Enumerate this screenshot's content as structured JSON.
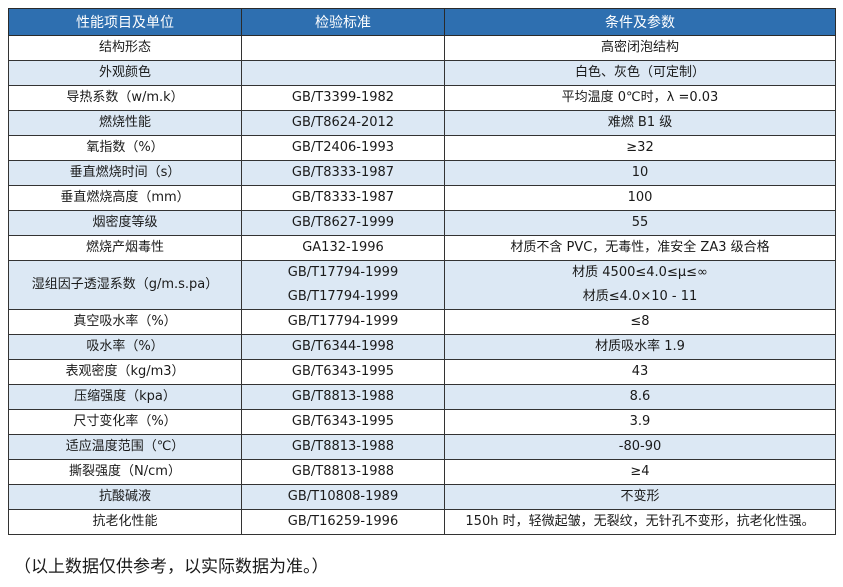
{
  "headers": [
    "性能项目及单位",
    "检验标准",
    "条件及参数"
  ],
  "rows": [
    {
      "item": "结构形态",
      "standard": "",
      "value": "高密闭泡结构"
    },
    {
      "item": "外观颜色",
      "standard": "",
      "value": "白色、灰色（可定制）"
    },
    {
      "item": "导热系数（w/m.k）",
      "standard": "GB/T3399-1982",
      "value": "平均温度 0℃时，λ =0.03"
    },
    {
      "item": "燃烧性能",
      "standard": "GB/T8624-2012",
      "value": "难燃 B1 级"
    },
    {
      "item": "氧指数（%）",
      "standard": "GB/T2406-1993",
      "value": "≥32"
    },
    {
      "item": "垂直燃烧时间（s）",
      "standard": "GB/T8333-1987",
      "value": "10"
    },
    {
      "item": "垂直燃烧高度（mm）",
      "standard": "GB/T8333-1987",
      "value": "100"
    },
    {
      "item": "烟密度等级",
      "standard": "GB/T8627-1999",
      "value": "55"
    },
    {
      "item": "燃烧产烟毒性",
      "standard": "GA132-1996",
      "value": "材质不含 PVC，无毒性，准安全 ZA3 级合格"
    },
    {
      "item": "湿组因子透湿系数（g/m.s.pa）",
      "standard": [
        "GB/T17794-1999",
        "GB/T17794-1999"
      ],
      "value": [
        "材质 4500≤4.0≤μ≤∞",
        "材质≤4.0×10 - 11"
      ]
    },
    {
      "item": "真空吸水率（%）",
      "standard": "GB/T17794-1999",
      "value": "≤8"
    },
    {
      "item": "吸水率（%）",
      "standard": "GB/T6344-1998",
      "value": "材质吸水率 1.9"
    },
    {
      "item": "表观密度（kg/m3）",
      "standard": "GB/T6343-1995",
      "value": "43"
    },
    {
      "item": "压缩强度（kpa）",
      "standard": "GB/T8813-1988",
      "value": "8.6"
    },
    {
      "item": "尺寸变化率（%）",
      "standard": "GB/T6343-1995",
      "value": "3.9"
    },
    {
      "item": "适应温度范围（℃）",
      "standard": "GB/T8813-1988",
      "value": "-80-90"
    },
    {
      "item": "撕裂强度（N/cm）",
      "standard": "GB/T8813-1988",
      "value": "≥4"
    },
    {
      "item": "抗酸碱液",
      "standard": "GB/T10808-1989",
      "value": "不变形"
    },
    {
      "item": "抗老化性能",
      "standard": "GB/T16259-1996",
      "value": "150h 时，轻微起皱，无裂纹，无针孔不变形，抗老化性强。"
    }
  ],
  "note": "（以上数据仅供参考，以实际数据为准。）",
  "colors": {
    "header": "#2e6fb0",
    "stripe": "#dce8f4"
  }
}
